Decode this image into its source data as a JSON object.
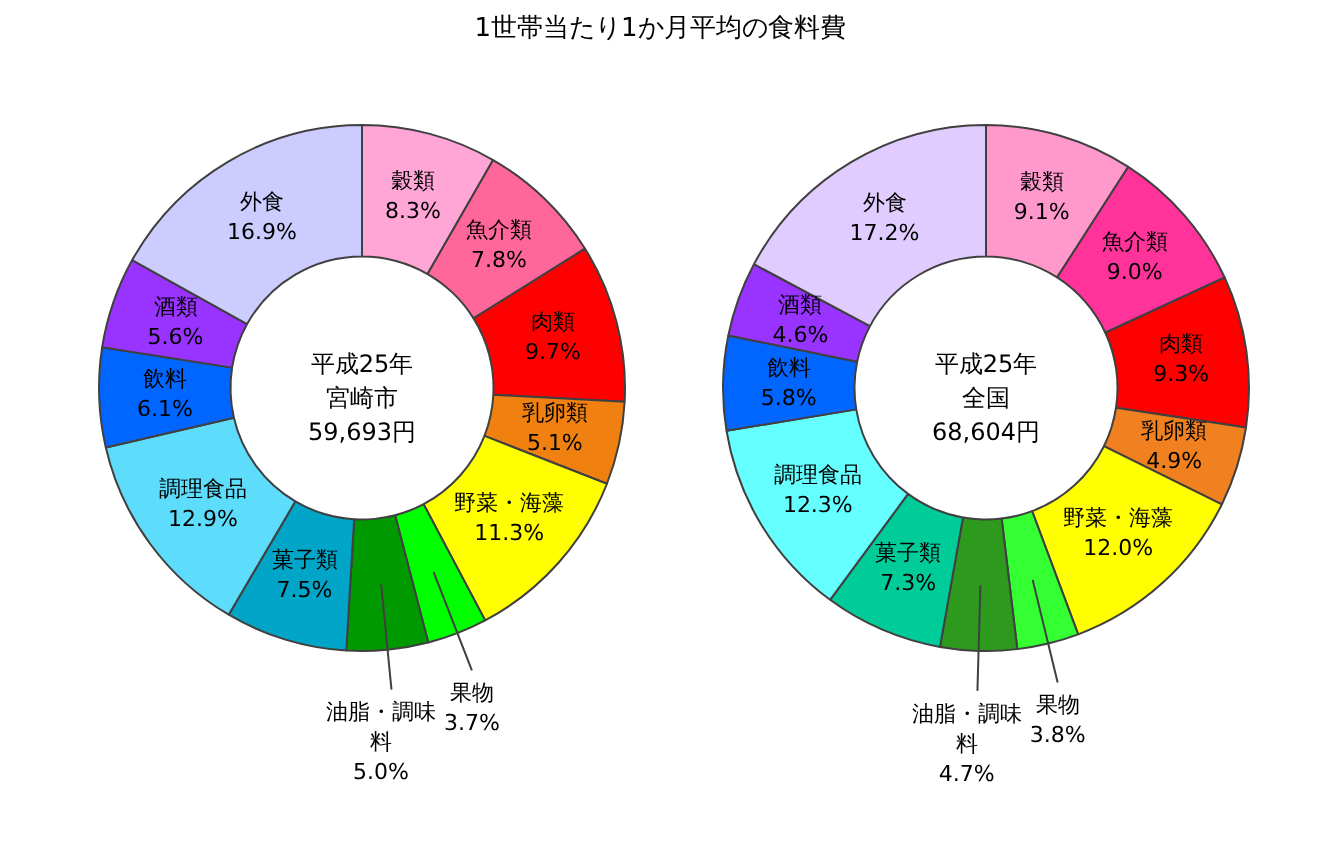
{
  "chart_data": [
    {
      "type": "donut",
      "title": "1世帯当たり1か月平均の食料費",
      "annotations": [
        "平成25年",
        "宮崎市",
        "59,693円"
      ],
      "categories": [
        "穀類",
        "魚介類",
        "肉類",
        "乳卵類",
        "野菜・海藻",
        "果物",
        "油脂・調味料",
        "菓子類",
        "調理食品",
        "飲料",
        "酒類",
        "外食"
      ],
      "values": [
        8.3,
        7.8,
        9.7,
        5.1,
        11.3,
        3.7,
        5.0,
        7.5,
        12.9,
        6.1,
        5.6,
        16.9
      ],
      "value_labels": [
        "8.3%",
        "7.8%",
        "9.7%",
        "5.1%",
        "11.3%",
        "3.7%",
        "5.0%",
        "7.5%",
        "12.9%",
        "6.1%",
        "5.6%",
        "16.9%"
      ],
      "colors": [
        "#ffa6d6",
        "#ff6699",
        "#ff0000",
        "#f08010",
        "#ffff00",
        "#00ff00",
        "#009900",
        "#00a5c8",
        "#5ddcfc",
        "#0066ff",
        "#9933ff",
        "#ccccff"
      ]
    },
    {
      "type": "donut",
      "annotations": [
        "平成25年",
        "全国",
        "68,604円"
      ],
      "categories": [
        "穀類",
        "魚介類",
        "肉類",
        "乳卵類",
        "野菜・海藻",
        "果物",
        "油脂・調味料",
        "菓子類",
        "調理食品",
        "飲料",
        "酒類",
        "外食"
      ],
      "values": [
        9.1,
        9.0,
        9.3,
        4.9,
        12.0,
        3.8,
        4.7,
        7.3,
        12.3,
        5.8,
        4.6,
        17.2
      ],
      "value_labels": [
        "9.1%",
        "9.0%",
        "9.3%",
        "4.9%",
        "12.0%",
        "3.8%",
        "4.7%",
        "7.3%",
        "12.3%",
        "5.8%",
        "4.6%",
        "17.2%"
      ],
      "colors": [
        "#ff99cc",
        "#ff3399",
        "#ff0000",
        "#f08020",
        "#ffff00",
        "#33ff33",
        "#2d9a1e",
        "#00cc99",
        "#66ffff",
        "#0066ff",
        "#9933ff",
        "#e0ccff"
      ]
    }
  ]
}
